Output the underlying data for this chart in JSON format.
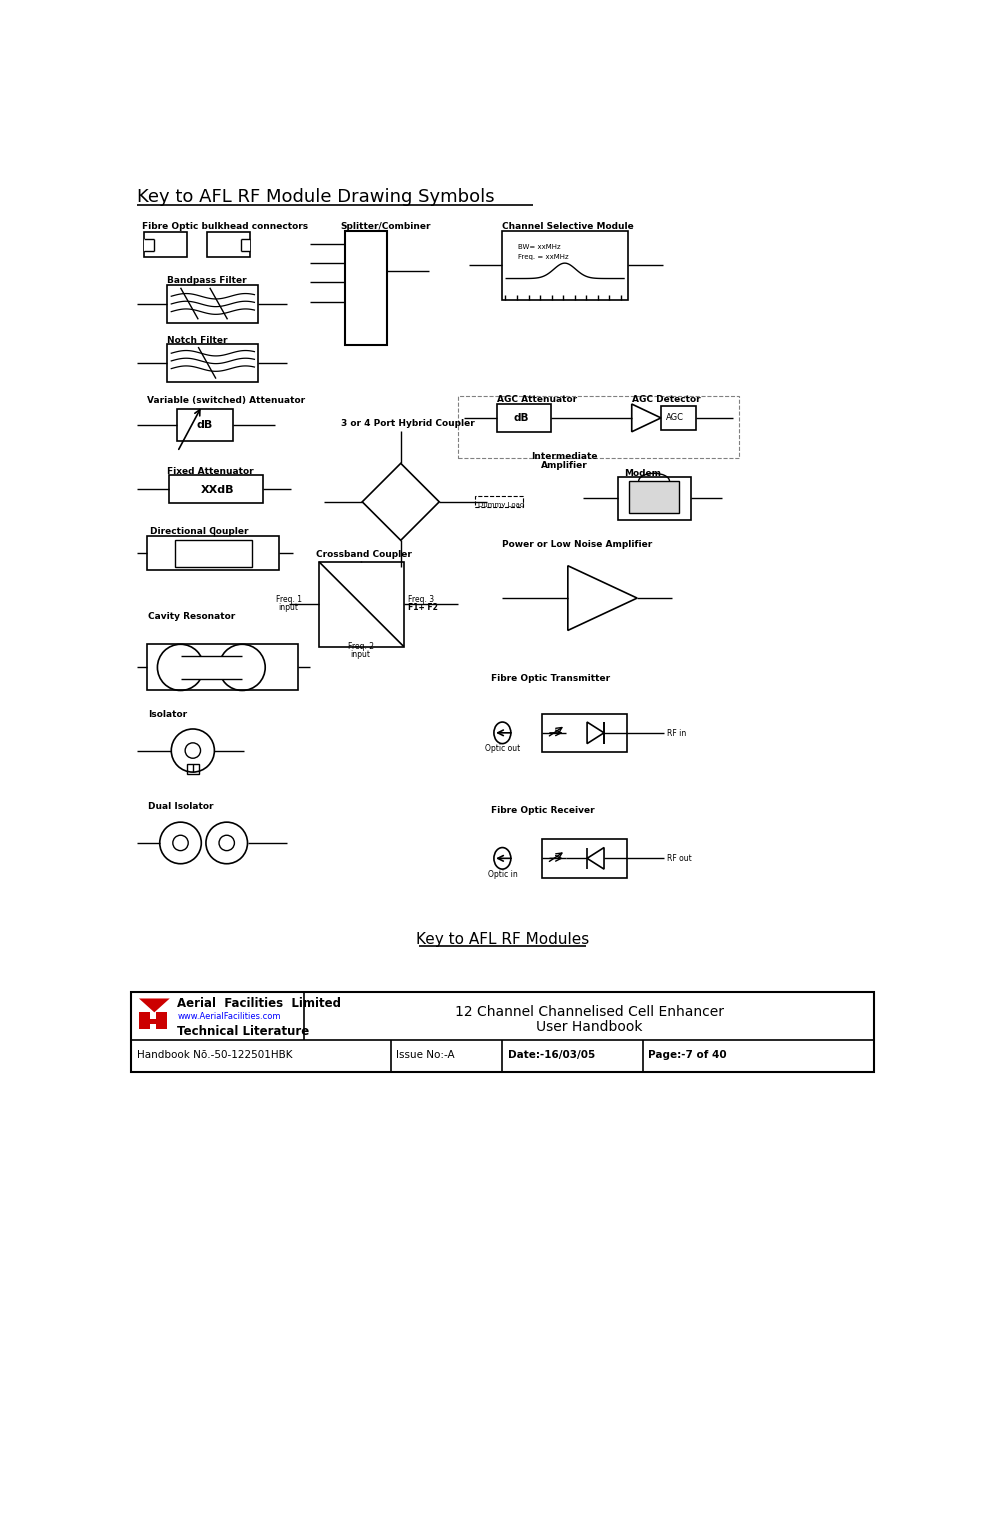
{
  "title": "Key to AFL RF Module Drawing Symbols",
  "footer_title": "Key to AFL RF Modules",
  "company_name": "Aerial  Facilities  Limited",
  "company_url": "www.AerialFacilities.com",
  "company_lit": "Technical Literature",
  "doc_number": "Handbook Nō.-50-122501HBK",
  "issue": "Issue No:-A",
  "date": "Date:-16/03/05",
  "page": "Page:-7 of 40",
  "doc_title_line1": "12 Channel Channelised Cell Enhancer",
  "doc_title_line2": "User Handbook",
  "bg_color": "#ffffff"
}
